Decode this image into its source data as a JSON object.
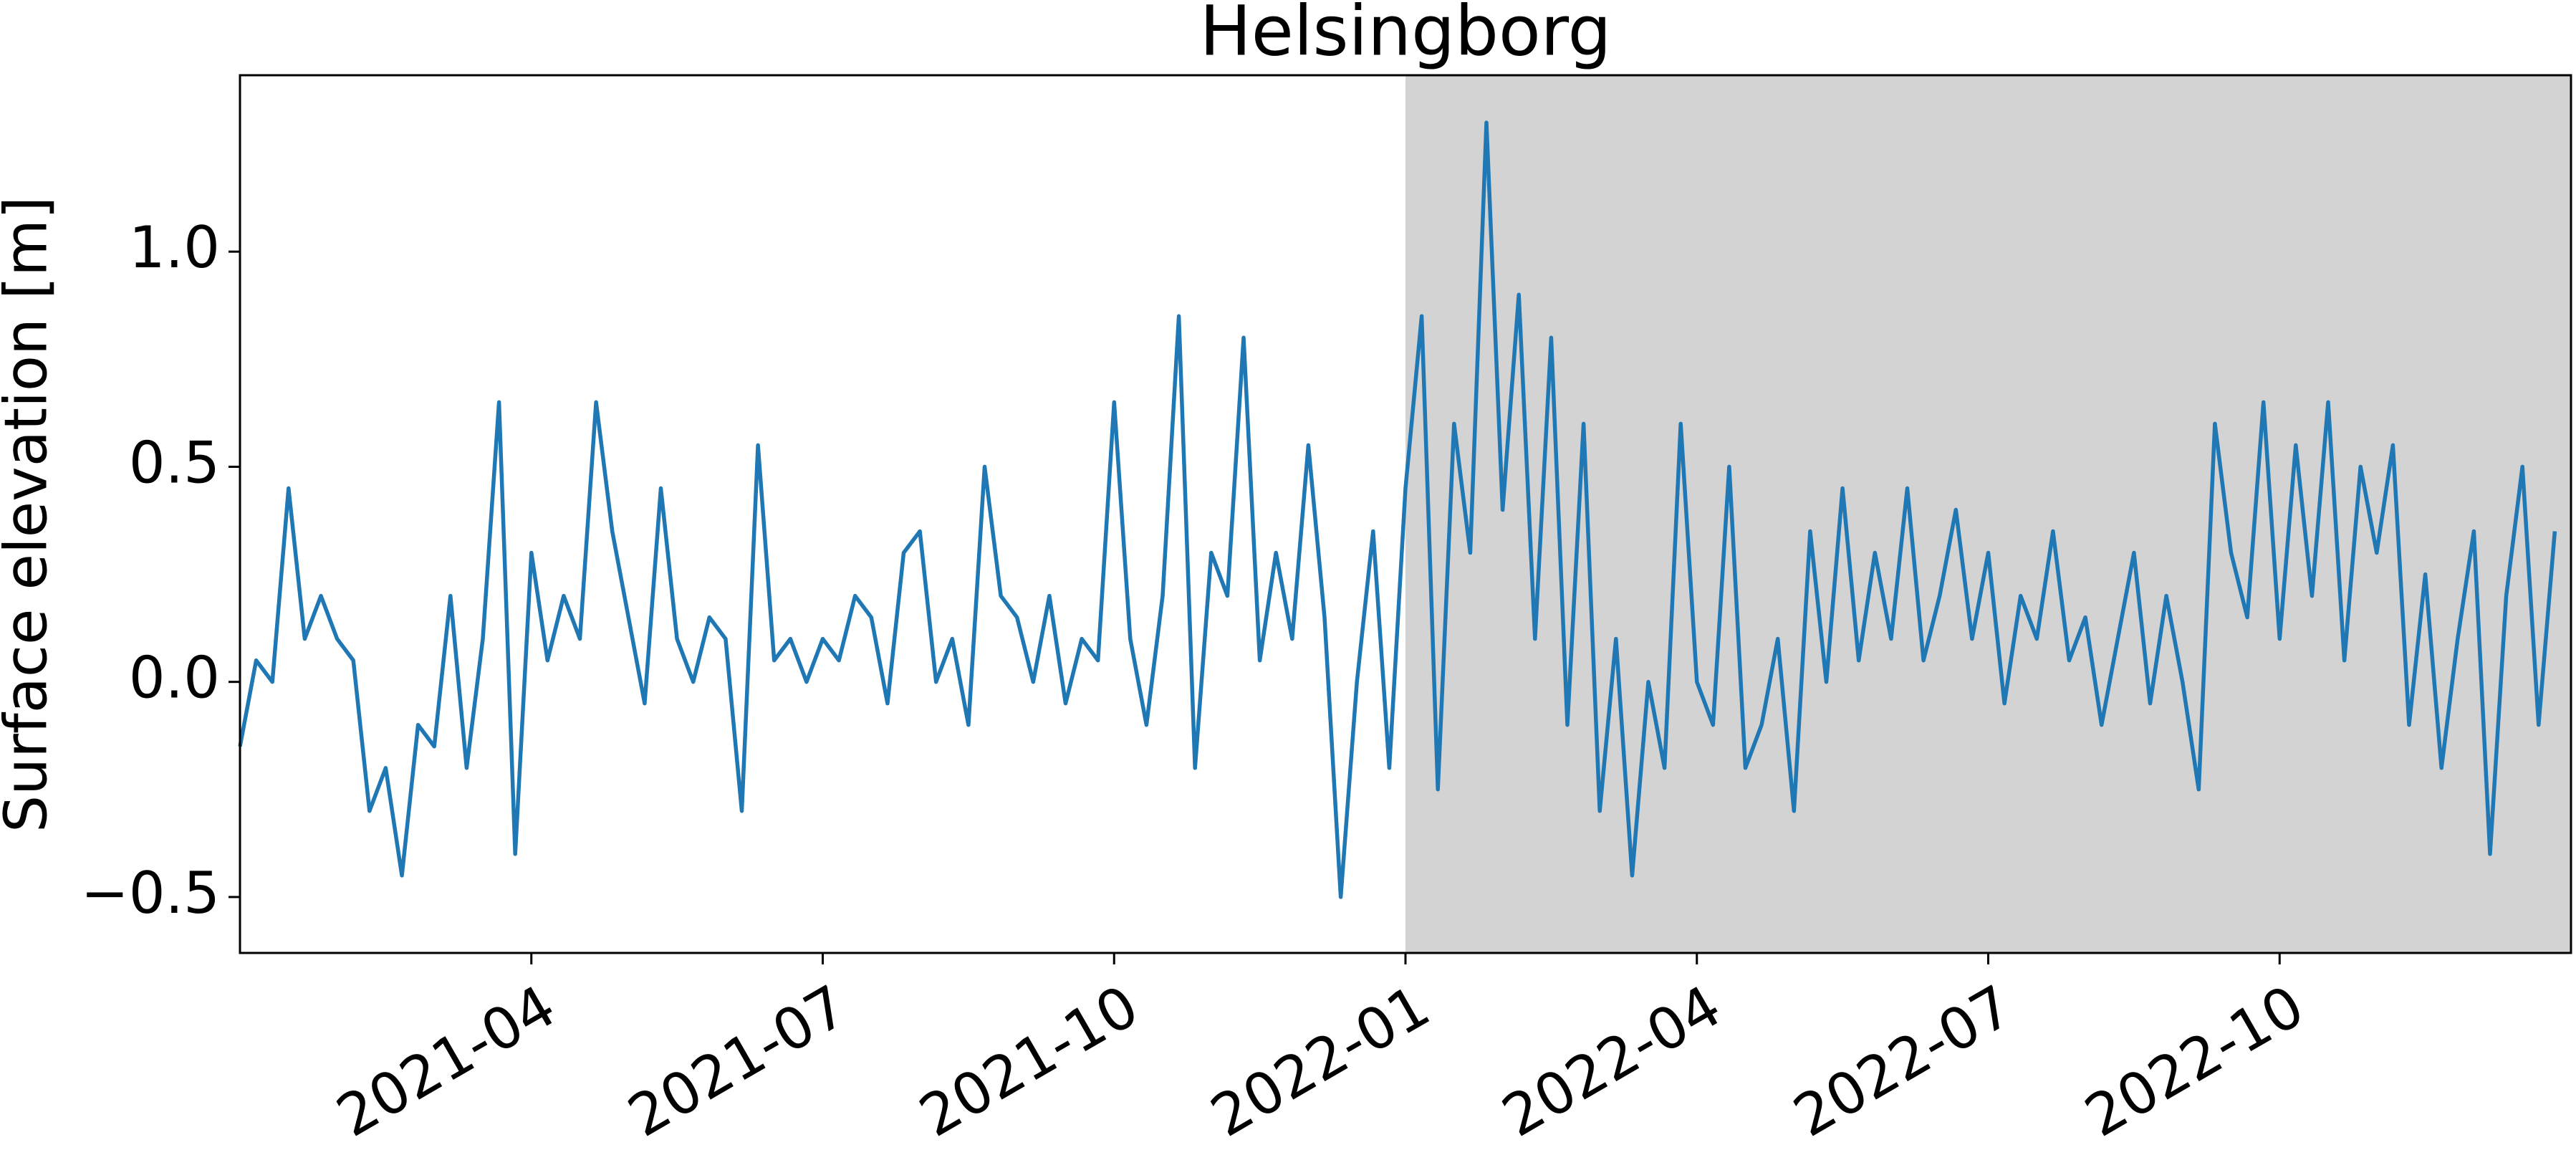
{
  "chart_data": {
    "type": "line",
    "title": "Helsingborg",
    "y_label": "Surface elevation [m]",
    "x": [
      null,
      null,
      null,
      null,
      null,
      null,
      null,
      null,
      null,
      null,
      null,
      null,
      null,
      null,
      null,
      null,
      null,
      null,
      "2021-04",
      null,
      null,
      null,
      null,
      null,
      null,
      null,
      null,
      null,
      null,
      null,
      null,
      null,
      null,
      null,
      null,
      null,
      "2021-07",
      null,
      null,
      null,
      null,
      null,
      null,
      null,
      null,
      null,
      null,
      null,
      null,
      null,
      null,
      null,
      null,
      null,
      "2021-10",
      null,
      null,
      null,
      null,
      null,
      null,
      null,
      null,
      null,
      null,
      null,
      null,
      null,
      null,
      null,
      null,
      null,
      "2022-01",
      null,
      null,
      null,
      null,
      null,
      null,
      null,
      null,
      null,
      null,
      null,
      null,
      null,
      null,
      null,
      null,
      null,
      "2022-04",
      null,
      null,
      null,
      null,
      null,
      null,
      null,
      null,
      null,
      null,
      null,
      null,
      null,
      null,
      null,
      null,
      null,
      "2022-07",
      null,
      null,
      null,
      null,
      null,
      null,
      null,
      null,
      null,
      null,
      null,
      null,
      null,
      null,
      null,
      null,
      null,
      "2022-10",
      null,
      null,
      null,
      null,
      null,
      null,
      null,
      null,
      null,
      null,
      null,
      null,
      null,
      null,
      null,
      null,
      null
    ],
    "series": [
      {
        "color": "#1f77b4",
        "values": [
          -0.15,
          0.05,
          0.0,
          0.45,
          0.1,
          0.2,
          0.1,
          0.05,
          -0.3,
          -0.2,
          -0.45,
          -0.1,
          -0.15,
          0.2,
          -0.2,
          0.1,
          0.65,
          -0.4,
          0.3,
          0.05,
          0.2,
          0.1,
          0.65,
          0.35,
          0.15,
          -0.05,
          0.45,
          0.1,
          0.0,
          0.15,
          0.1,
          -0.3,
          0.55,
          0.05,
          0.1,
          0.0,
          0.1,
          0.05,
          0.2,
          0.15,
          -0.05,
          0.3,
          0.35,
          0.0,
          0.1,
          -0.1,
          0.5,
          0.2,
          0.15,
          0.0,
          0.2,
          -0.05,
          0.1,
          0.05,
          0.65,
          0.1,
          -0.1,
          0.2,
          0.85,
          -0.2,
          0.3,
          0.2,
          0.8,
          0.05,
          0.3,
          0.1,
          0.55,
          0.15,
          -0.5,
          0.0,
          0.35,
          -0.2,
          0.45,
          0.85,
          -0.25,
          0.6,
          0.3,
          1.3,
          0.4,
          0.9,
          0.1,
          0.8,
          -0.1,
          0.6,
          -0.3,
          0.1,
          -0.45,
          0.0,
          -0.2,
          0.6,
          0.0,
          -0.1,
          0.5,
          -0.2,
          -0.1,
          0.1,
          -0.3,
          0.35,
          0.0,
          0.45,
          0.05,
          0.3,
          0.1,
          0.45,
          0.05,
          0.2,
          0.4,
          0.1,
          0.3,
          -0.05,
          0.2,
          0.1,
          0.35,
          0.05,
          0.15,
          -0.1,
          0.1,
          0.3,
          -0.05,
          0.2,
          0.0,
          -0.25,
          0.6,
          0.3,
          0.15,
          0.65,
          0.1,
          0.55,
          0.2,
          0.65,
          0.05,
          0.5,
          0.3,
          0.55,
          -0.1,
          0.25,
          -0.2,
          0.1,
          0.35,
          -0.4,
          0.2,
          0.5,
          -0.1,
          0.35
        ]
      }
    ],
    "ylim": [
      -0.63,
      1.41
    ],
    "yticks": [
      {
        "value": -0.5,
        "label": "−0.5"
      },
      {
        "value": 0,
        "label": "0.0"
      },
      {
        "value": 0.5,
        "label": "0.5"
      },
      {
        "value": 1,
        "label": "1.0"
      }
    ],
    "shaded_from": "2022-01",
    "shade_color": "#d3d3d3",
    "grid": false
  }
}
